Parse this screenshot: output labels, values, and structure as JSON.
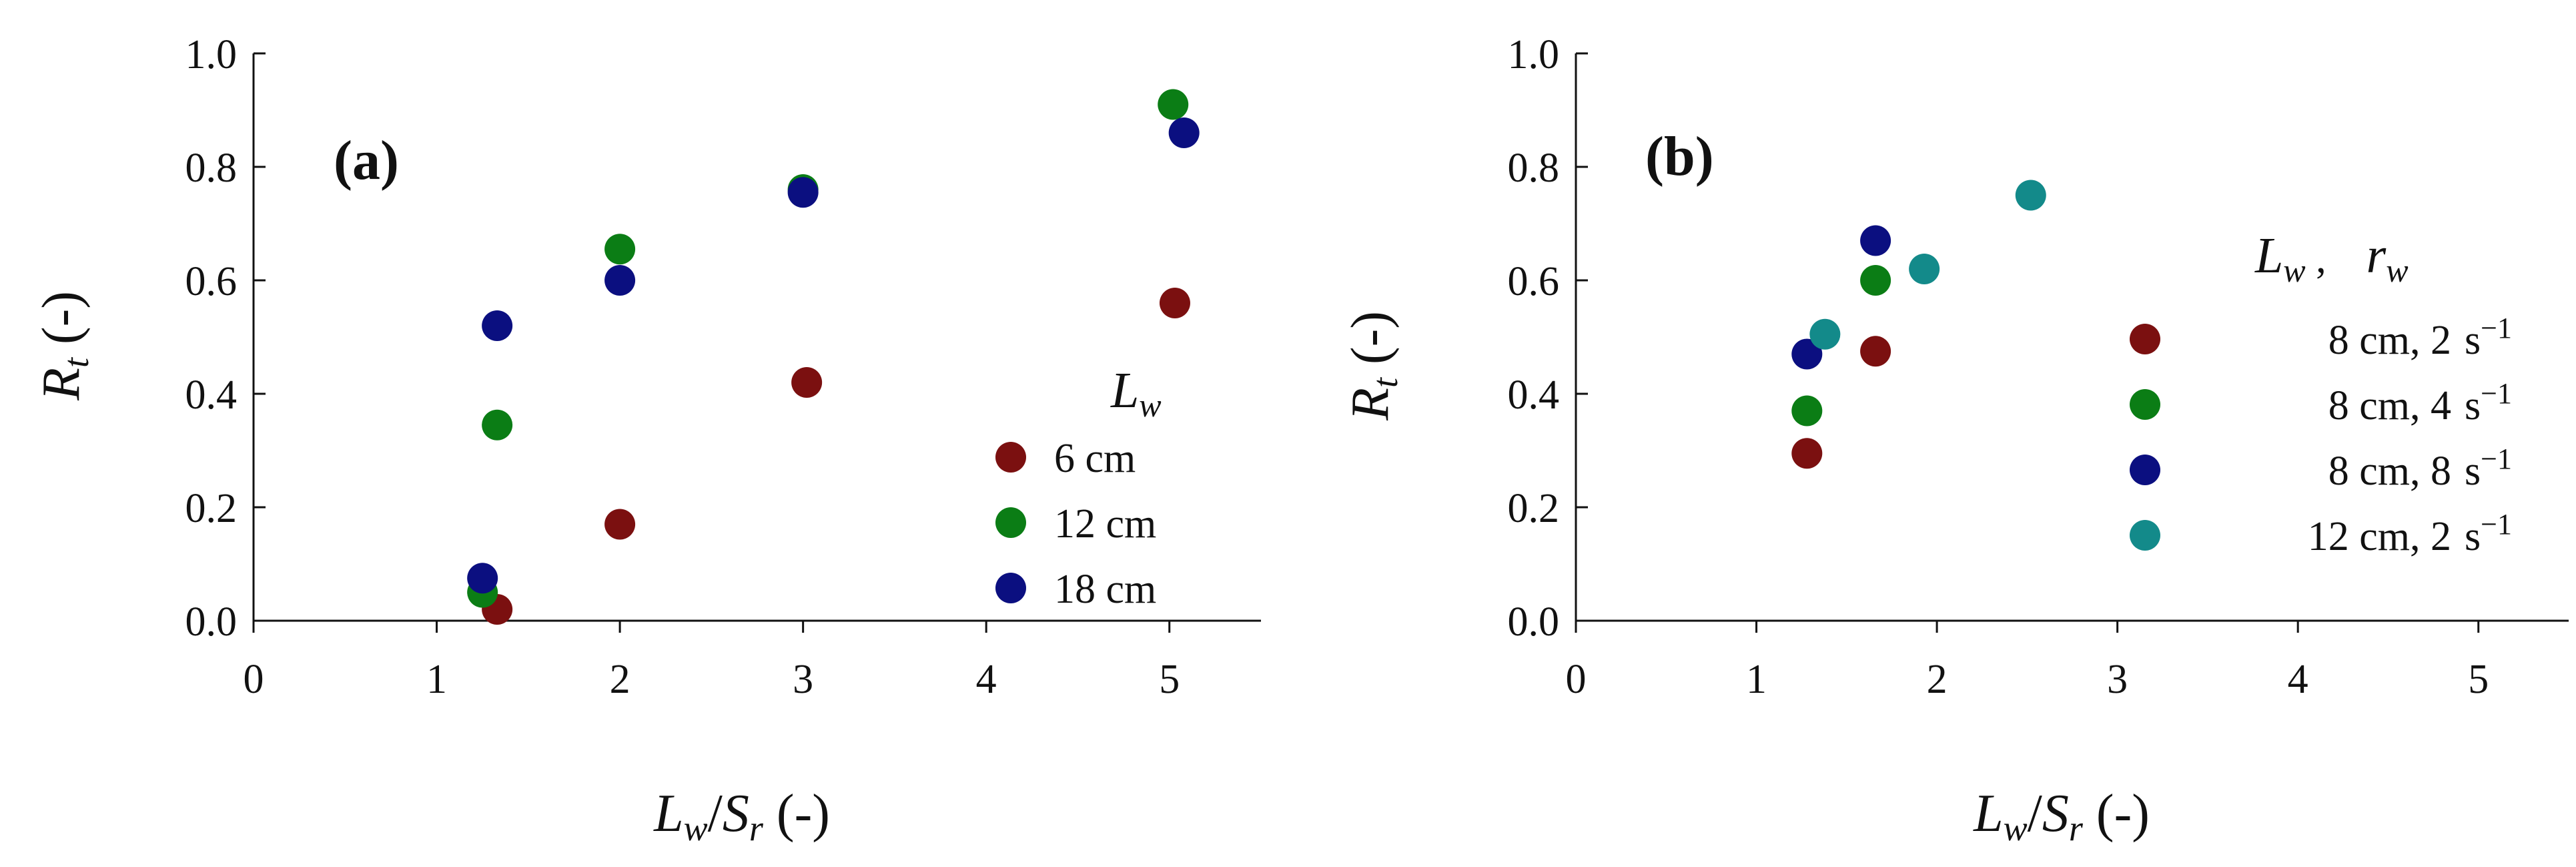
{
  "chart_data": [
    {
      "type": "scatter",
      "panel_label_open": "(",
      "panel_label_letter": "a",
      "panel_label_close": ")",
      "ylabel": {
        "var": "R",
        "sub": "t",
        "unit": " (-)"
      },
      "xlabel": {
        "var1": "L",
        "sub1": "w",
        "slash": "/",
        "var2": "S",
        "sub2": "r",
        "unit": " (-)"
      },
      "xlim": [
        0,
        5.5
      ],
      "ylim": [
        0,
        1.0
      ],
      "x_ticks": [
        "0",
        "1",
        "2",
        "3",
        "4",
        "5"
      ],
      "y_ticks": [
        "0.0",
        "0.2",
        "0.4",
        "0.6",
        "0.8",
        "1.0"
      ],
      "grid": false,
      "legend_position": "lower-right",
      "legend_title": {
        "var": "L",
        "sub": "w"
      },
      "series": [
        {
          "name": "6 cm",
          "color": "#7b1010",
          "points": [
            [
              1.33,
              0.02
            ],
            [
              2.0,
              0.17
            ],
            [
              3.02,
              0.42
            ],
            [
              5.03,
              0.56
            ]
          ]
        },
        {
          "name": "12 cm",
          "color": "#0b7d15",
          "points": [
            [
              1.25,
              0.05
            ],
            [
              1.33,
              0.345
            ],
            [
              2.0,
              0.655
            ],
            [
              3.0,
              0.76
            ],
            [
              5.02,
              0.91
            ]
          ]
        },
        {
          "name": "18 cm",
          "color": "#0b0f80",
          "points": [
            [
              1.25,
              0.075
            ],
            [
              1.33,
              0.52
            ],
            [
              2.0,
              0.6
            ],
            [
              3.0,
              0.755
            ],
            [
              5.08,
              0.86
            ]
          ]
        }
      ]
    },
    {
      "type": "scatter",
      "panel_label_open": "(",
      "panel_label_letter": "b",
      "panel_label_close": ")",
      "ylabel": {
        "var": "R",
        "sub": "t",
        "unit": " (-)"
      },
      "xlabel": {
        "var1": "L",
        "sub1": "w",
        "slash": "/",
        "var2": "S",
        "sub2": "r",
        "unit": " (-)"
      },
      "xlim": [
        0,
        5.5
      ],
      "ylim": [
        0,
        1.0
      ],
      "x_ticks": [
        "0",
        "1",
        "2",
        "3",
        "4",
        "5"
      ],
      "y_ticks": [
        "0.0",
        "0.2",
        "0.4",
        "0.6",
        "0.8",
        "1.0"
      ],
      "grid": false,
      "legend_position": "right",
      "legend_title": {
        "var1": "L",
        "sub1": "w",
        "sep": " ,",
        "var2": "r",
        "sub2": "w"
      },
      "series": [
        {
          "name": "8 cm, 2",
          "unit": "s",
          "exp": "−1",
          "color": "#7b1010",
          "points": [
            [
              1.28,
              0.295
            ],
            [
              1.66,
              0.475
            ]
          ]
        },
        {
          "name": "8 cm, 4",
          "unit": "s",
          "exp": "−1",
          "color": "#0b7d15",
          "points": [
            [
              1.28,
              0.37
            ],
            [
              1.66,
              0.6
            ]
          ]
        },
        {
          "name": "8 cm, 8",
          "unit": "s",
          "exp": "−1",
          "color": "#0b0f80",
          "points": [
            [
              1.28,
              0.47
            ],
            [
              1.66,
              0.67
            ]
          ]
        },
        {
          "name": "12 cm, 2",
          "unit": "s",
          "exp": "−1",
          "color": "#138a8a",
          "points": [
            [
              1.38,
              0.505
            ],
            [
              1.93,
              0.62
            ],
            [
              2.52,
              0.75
            ]
          ]
        }
      ]
    }
  ]
}
